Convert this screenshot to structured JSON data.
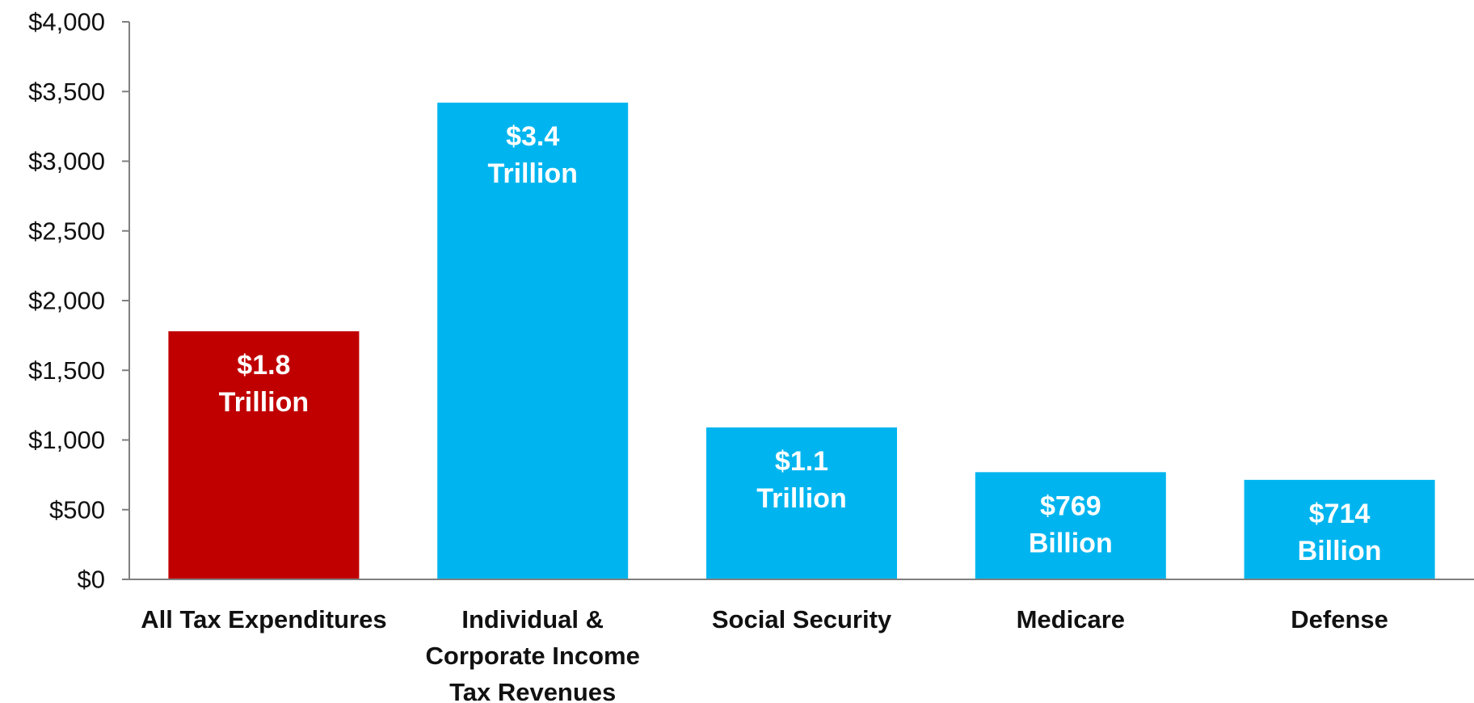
{
  "chart_data": {
    "type": "bar",
    "categories": [
      [
        "All Tax Expenditures"
      ],
      [
        "Individual &",
        "Corporate Income",
        "Tax Revenues"
      ],
      [
        "Social Security"
      ],
      [
        "Medicare"
      ],
      [
        "Defense"
      ]
    ],
    "values": [
      1780,
      3420,
      1090,
      769,
      714
    ],
    "data_labels": [
      [
        "$1.8",
        "Trillion"
      ],
      [
        "$3.4",
        "Trillion"
      ],
      [
        "$1.1",
        "Trillion"
      ],
      [
        "$769",
        "Billion"
      ],
      [
        "$714",
        "Billion"
      ]
    ],
    "bar_colors": [
      "#c00000",
      "#00b5ef",
      "#00b5ef",
      "#00b5ef",
      "#00b5ef"
    ],
    "ylim": [
      0,
      4000
    ],
    "yticks": [
      0,
      500,
      1000,
      1500,
      2000,
      2500,
      3000,
      3500,
      4000
    ],
    "ytick_labels": [
      "$0",
      "$500",
      "$1,000",
      "$1,500",
      "$2,000",
      "$2,500",
      "$3,000",
      "$3,500",
      "$4,000"
    ],
    "grid": false,
    "legend": "none",
    "title": "",
    "xlabel": "",
    "ylabel": ""
  },
  "colors": {
    "axis": "#7f7f7f",
    "text": "#111111",
    "label_text": "#ffffff"
  }
}
